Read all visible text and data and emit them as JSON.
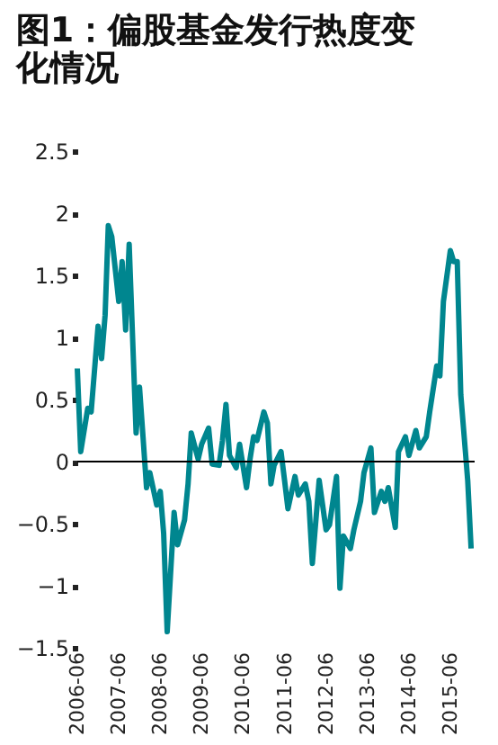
{
  "chart_data": {
    "type": "line",
    "title": "图1：偏股基金发行热度变化情况",
    "x": [
      "2006-06",
      "2006-07",
      "2006-09",
      "2006-10",
      "2006-12",
      "2007-01",
      "2007-02",
      "2007-03",
      "2007-04",
      "2007-06",
      "2007-07",
      "2007-08",
      "2007-09",
      "2007-11",
      "2007-12",
      "2008-01",
      "2008-02",
      "2008-03",
      "2008-05",
      "2008-06",
      "2008-07",
      "2008-08",
      "2008-10",
      "2008-11",
      "2009-01",
      "2009-02",
      "2009-03",
      "2009-05",
      "2009-06",
      "2009-08",
      "2009-09",
      "2009-11",
      "2009-12",
      "2010-01",
      "2010-02",
      "2010-04",
      "2010-05",
      "2010-07",
      "2010-08",
      "2010-09",
      "2010-10",
      "2010-12",
      "2011-01",
      "2011-02",
      "2011-03",
      "2011-05",
      "2011-06",
      "2011-07",
      "2011-09",
      "2011-10",
      "2011-12",
      "2012-01",
      "2012-02",
      "2012-04",
      "2012-06",
      "2012-07",
      "2012-09",
      "2012-10",
      "2012-11",
      "2013-01",
      "2013-02",
      "2013-04",
      "2013-05",
      "2013-07",
      "2013-08",
      "2013-10",
      "2013-11",
      "2013-12",
      "2014-02",
      "2014-03",
      "2014-05",
      "2014-06",
      "2014-08",
      "2014-09",
      "2014-11",
      "2014-12",
      "2015-02",
      "2015-03",
      "2015-04",
      "2015-06",
      "2015-07",
      "2015-08",
      "2015-09",
      "2015-11",
      "2015-12"
    ],
    "series": [
      {
        "color": "#00868f",
        "values": [
          0.75,
          0.08,
          0.43,
          0.4,
          1.09,
          0.83,
          1.18,
          1.9,
          1.81,
          1.29,
          1.61,
          1.06,
          1.75,
          0.23,
          0.6,
          0.2,
          -0.21,
          -0.09,
          -0.35,
          -0.24,
          -0.58,
          -1.37,
          -0.41,
          -0.67,
          -0.47,
          -0.18,
          0.23,
          0.02,
          0.14,
          0.27,
          -0.02,
          -0.03,
          0.17,
          0.46,
          0.05,
          -0.05,
          0.14,
          -0.21,
          0.02,
          0.2,
          0.17,
          0.4,
          0.31,
          -0.18,
          -0.03,
          0.08,
          -0.15,
          -0.38,
          -0.12,
          -0.27,
          -0.18,
          -0.32,
          -0.82,
          -0.15,
          -0.55,
          -0.51,
          -0.12,
          -1.02,
          -0.6,
          -0.7,
          -0.55,
          -0.32,
          -0.09,
          0.11,
          -0.41,
          -0.24,
          -0.32,
          -0.21,
          -0.53,
          0.08,
          0.2,
          0.05,
          0.25,
          0.11,
          0.2,
          0.4,
          0.77,
          0.69,
          1.29,
          1.7,
          1.61,
          1.61,
          0.54,
          -0.15,
          -0.7
        ]
      }
    ],
    "xlim": [
      "2006-06",
      "2016-01"
    ],
    "xticks": [
      "2006-06",
      "2007-06",
      "2008-06",
      "2009-06",
      "2010-06",
      "2011-06",
      "2012-06",
      "2013-06",
      "2014-06",
      "2015-06"
    ],
    "ylim": [
      -1.5,
      2.5
    ],
    "yticks": [
      -1.5,
      -1,
      -0.5,
      0,
      0.5,
      1,
      1.5,
      2,
      2.5
    ],
    "ref_lines": [
      {
        "axis": "y",
        "value": 0,
        "color": "#000000"
      }
    ],
    "grid": false,
    "marker": "none",
    "line_style": "solid"
  }
}
